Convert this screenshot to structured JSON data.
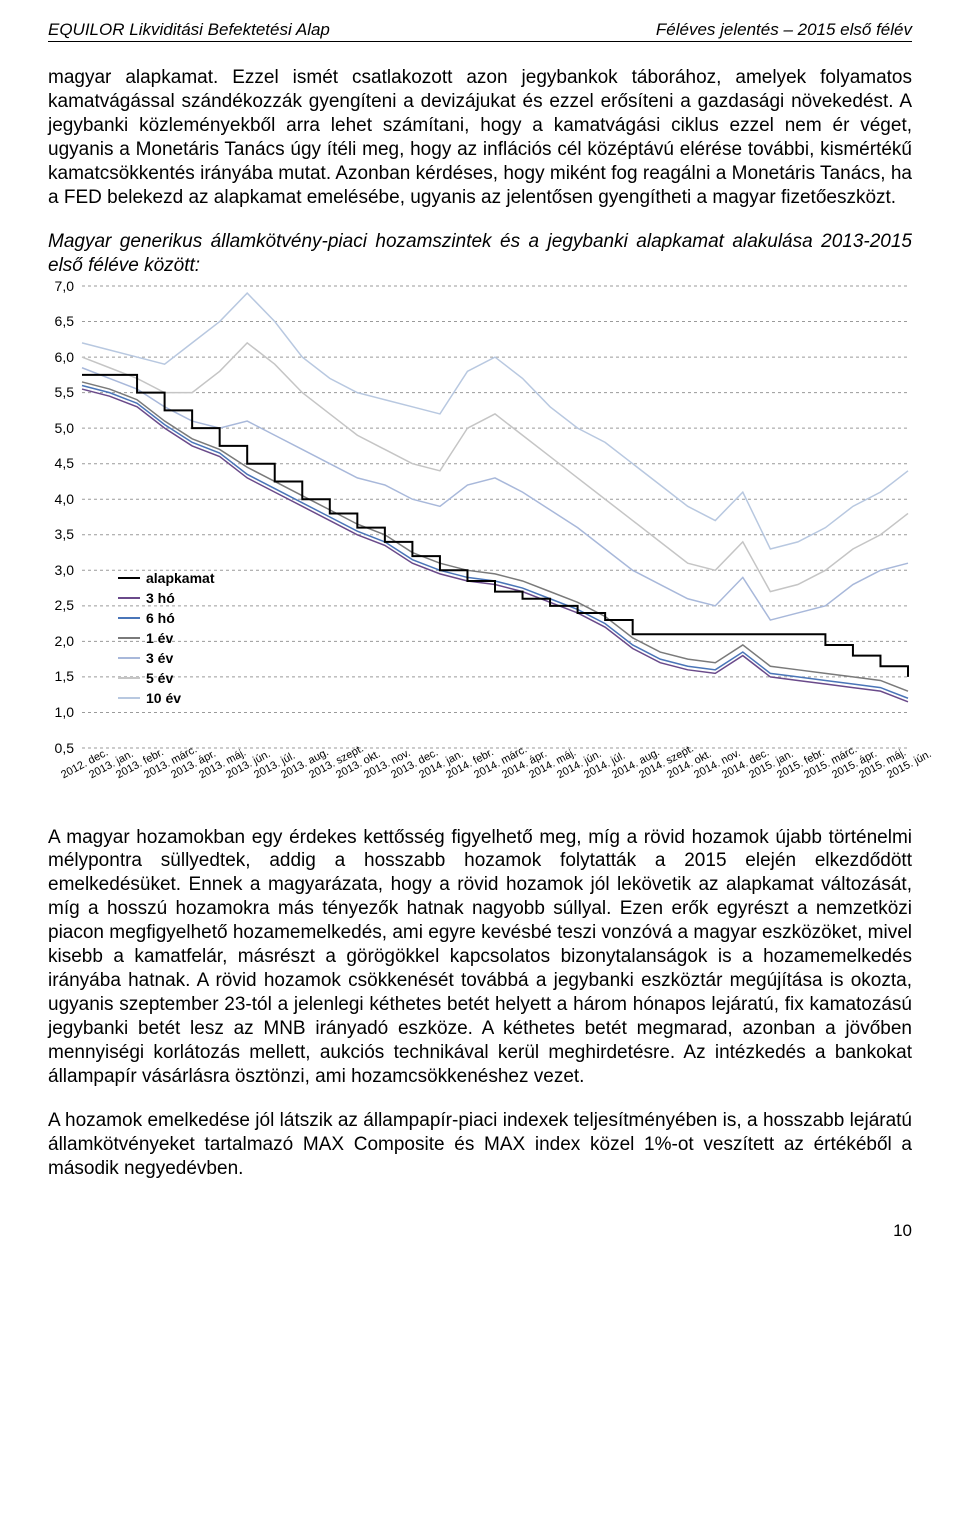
{
  "header": {
    "left": "EQUILOR Likviditási Befektetési Alap",
    "right": "Féléves jelentés – 2015 első félév"
  },
  "paragraph1": "magyar alapkamat. Ezzel ismét csatlakozott azon jegybankok táborához, amelyek folyamatos kamatvágással szándékozzák gyengíteni a devizájukat és ezzel erősíteni a gazdasági növekedést. A jegybanki közleményekből arra lehet számítani, hogy a kamatvágási ciklus ezzel nem ér véget, ugyanis a Monetáris Tanács úgy ítéli meg, hogy az inflációs cél középtávú elérése további, kismértékű kamatcsökkentés irányába mutat. Azonban kérdéses, hogy miként fog reagálni a Monetáris Tanács, ha a FED belekezd az alapkamat emelésébe, ugyanis az jelentősen gyengítheti a magyar fizetőeszközt.",
  "chart_title": "Magyar generikus államkötvény-piaci hozamszintek és a jegybanki alapkamat alakulása 2013-2015 első féléve között:",
  "paragraph2": "A magyar hozamokban egy érdekes kettősség figyelhető meg, míg a rövid hozamok újabb történelmi mélypontra süllyedtek, addig a hosszabb hozamok folytatták a 2015 elején elkezdődött emelkedésüket. Ennek a magyarázata, hogy a rövid hozamok jól lekövetik az alapkamat változását, míg a hosszú hozamokra más tényezők hatnak nagyobb súllyal. Ezen erők egyrészt a nemzetközi piacon megfigyelhető hozamemelkedés, ami egyre kevésbé teszi vonzóvá a magyar eszközöket, mivel kisebb a kamatfelár, másrészt a görögökkel kapcsolatos bizonytalanságok is a hozamemelkedés irányába hatnak. A rövid hozamok csökkenését továbbá a jegybanki eszköztár megújítása is okozta, ugyanis szeptember 23-tól a jelenlegi kéthetes betét helyett a három hónapos lejáratú, fix kamatozású jegybanki betét lesz az MNB irányadó eszköze. A kéthetes betét megmarad, azonban a jövőben mennyiségi korlátozás mellett, aukciós technikával kerül meghirdetésre. Az intézkedés a bankokat állampapír vásárlásra ösztönzi, ami hozamcsökkenéshez vezet.",
  "paragraph3": "A hozamok emelkedése jól látszik az állampapír-piaci indexek teljesítményében is, a hosszabb lejáratú államkötvényeket tartalmazó MAX Composite és MAX index közel 1%-ot veszített az értékéből a második negyedévben.",
  "page_number": "10",
  "chart": {
    "type": "line",
    "background_color": "#ffffff",
    "grid_color": "#9a9a9a",
    "ylim": [
      0.5,
      7.0
    ],
    "ytick_step": 0.5,
    "yticks": [
      "7,0",
      "6,5",
      "6,0",
      "5,5",
      "5,0",
      "4,5",
      "4,0",
      "3,5",
      "3,0",
      "2,5",
      "2,0",
      "1,5",
      "1,0",
      "0,5"
    ],
    "xlabels": [
      "2012. dec.",
      "2013. jan.",
      "2013. febr.",
      "2013. márc.",
      "2013. ápr.",
      "2013. máj.",
      "2013. jún.",
      "2013. júl.",
      "2013. aug.",
      "2013. szept.",
      "2013. okt.",
      "2013. nov.",
      "2013. dec.",
      "2014. jan.",
      "2014. febr.",
      "2014. márc.",
      "2014. ápr.",
      "2014. máj.",
      "2014. jún.",
      "2014. júl.",
      "2014. aug.",
      "2014. szept.",
      "2014. okt.",
      "2014. nov.",
      "2014. dec.",
      "2015. jan.",
      "2015. febr.",
      "2015. márc.",
      "2015. ápr.",
      "2015. máj.",
      "2015. jún."
    ],
    "legend": {
      "position_top": 288,
      "items": [
        {
          "label": "alapkamat",
          "color": "#000000",
          "width": 2
        },
        {
          "label": "3 hó",
          "color": "#6a4a8a",
          "width": 2
        },
        {
          "label": "6 hó",
          "color": "#4a75b8",
          "width": 2
        },
        {
          "label": "1 év",
          "color": "#7a7a7a",
          "width": 2
        },
        {
          "label": "3 év",
          "color": "#a8b8da",
          "width": 2
        },
        {
          "label": "5 év",
          "color": "#c5c5c5",
          "width": 2
        },
        {
          "label": "10 év",
          "color": "#b8c8e0",
          "width": 2
        }
      ]
    },
    "series": {
      "alapkamat": {
        "color": "#000000",
        "width": 2,
        "data": [
          5.75,
          5.75,
          5.5,
          5.25,
          5.0,
          4.75,
          4.5,
          4.25,
          4.0,
          3.8,
          3.6,
          3.4,
          3.2,
          3.0,
          2.85,
          2.7,
          2.6,
          2.5,
          2.4,
          2.3,
          2.1,
          2.1,
          2.1,
          2.1,
          2.1,
          2.1,
          2.1,
          1.95,
          1.8,
          1.65,
          1.5
        ]
      },
      "3ho": {
        "color": "#6a4a8a",
        "width": 1.5,
        "data": [
          5.55,
          5.45,
          5.3,
          5.0,
          4.75,
          4.6,
          4.3,
          4.1,
          3.9,
          3.7,
          3.5,
          3.35,
          3.1,
          2.95,
          2.85,
          2.8,
          2.7,
          2.55,
          2.4,
          2.2,
          1.9,
          1.7,
          1.6,
          1.55,
          1.8,
          1.5,
          1.45,
          1.4,
          1.35,
          1.3,
          1.15
        ]
      },
      "6ho": {
        "color": "#4a75b8",
        "width": 1.5,
        "data": [
          5.6,
          5.5,
          5.35,
          5.05,
          4.8,
          4.65,
          4.35,
          4.15,
          3.95,
          3.75,
          3.55,
          3.4,
          3.15,
          3.0,
          2.9,
          2.85,
          2.75,
          2.6,
          2.45,
          2.25,
          1.95,
          1.75,
          1.65,
          1.6,
          1.85,
          1.55,
          1.5,
          1.45,
          1.4,
          1.35,
          1.2
        ]
      },
      "1ev": {
        "color": "#7a7a7a",
        "width": 1.5,
        "data": [
          5.65,
          5.55,
          5.4,
          5.1,
          4.85,
          4.7,
          4.45,
          4.25,
          4.05,
          3.85,
          3.65,
          3.5,
          3.25,
          3.1,
          3.0,
          2.95,
          2.85,
          2.7,
          2.55,
          2.35,
          2.05,
          1.85,
          1.75,
          1.7,
          1.95,
          1.65,
          1.6,
          1.55,
          1.5,
          1.45,
          1.3
        ]
      },
      "3ev": {
        "color": "#a8b8da",
        "width": 1.5,
        "data": [
          5.85,
          5.7,
          5.55,
          5.3,
          5.1,
          5.0,
          5.1,
          4.9,
          4.7,
          4.5,
          4.3,
          4.2,
          4.0,
          3.9,
          4.2,
          4.3,
          4.1,
          3.85,
          3.6,
          3.3,
          3.0,
          2.8,
          2.6,
          2.5,
          2.9,
          2.3,
          2.4,
          2.5,
          2.8,
          3.0,
          3.1
        ]
      },
      "5ev": {
        "color": "#c5c5c5",
        "width": 1.5,
        "data": [
          6.0,
          5.85,
          5.7,
          5.5,
          5.5,
          5.8,
          6.2,
          5.9,
          5.5,
          5.2,
          4.9,
          4.7,
          4.5,
          4.4,
          5.0,
          5.2,
          4.9,
          4.6,
          4.3,
          4.0,
          3.7,
          3.4,
          3.1,
          3.0,
          3.4,
          2.7,
          2.8,
          3.0,
          3.3,
          3.5,
          3.8
        ]
      },
      "10ev": {
        "color": "#b8c8e0",
        "width": 1.5,
        "data": [
          6.2,
          6.1,
          6.0,
          5.9,
          6.2,
          6.5,
          6.9,
          6.5,
          6.0,
          5.7,
          5.5,
          5.4,
          5.3,
          5.2,
          5.8,
          6.0,
          5.7,
          5.3,
          5.0,
          4.8,
          4.5,
          4.2,
          3.9,
          3.7,
          4.1,
          3.3,
          3.4,
          3.6,
          3.9,
          4.1,
          4.4
        ]
      }
    }
  }
}
